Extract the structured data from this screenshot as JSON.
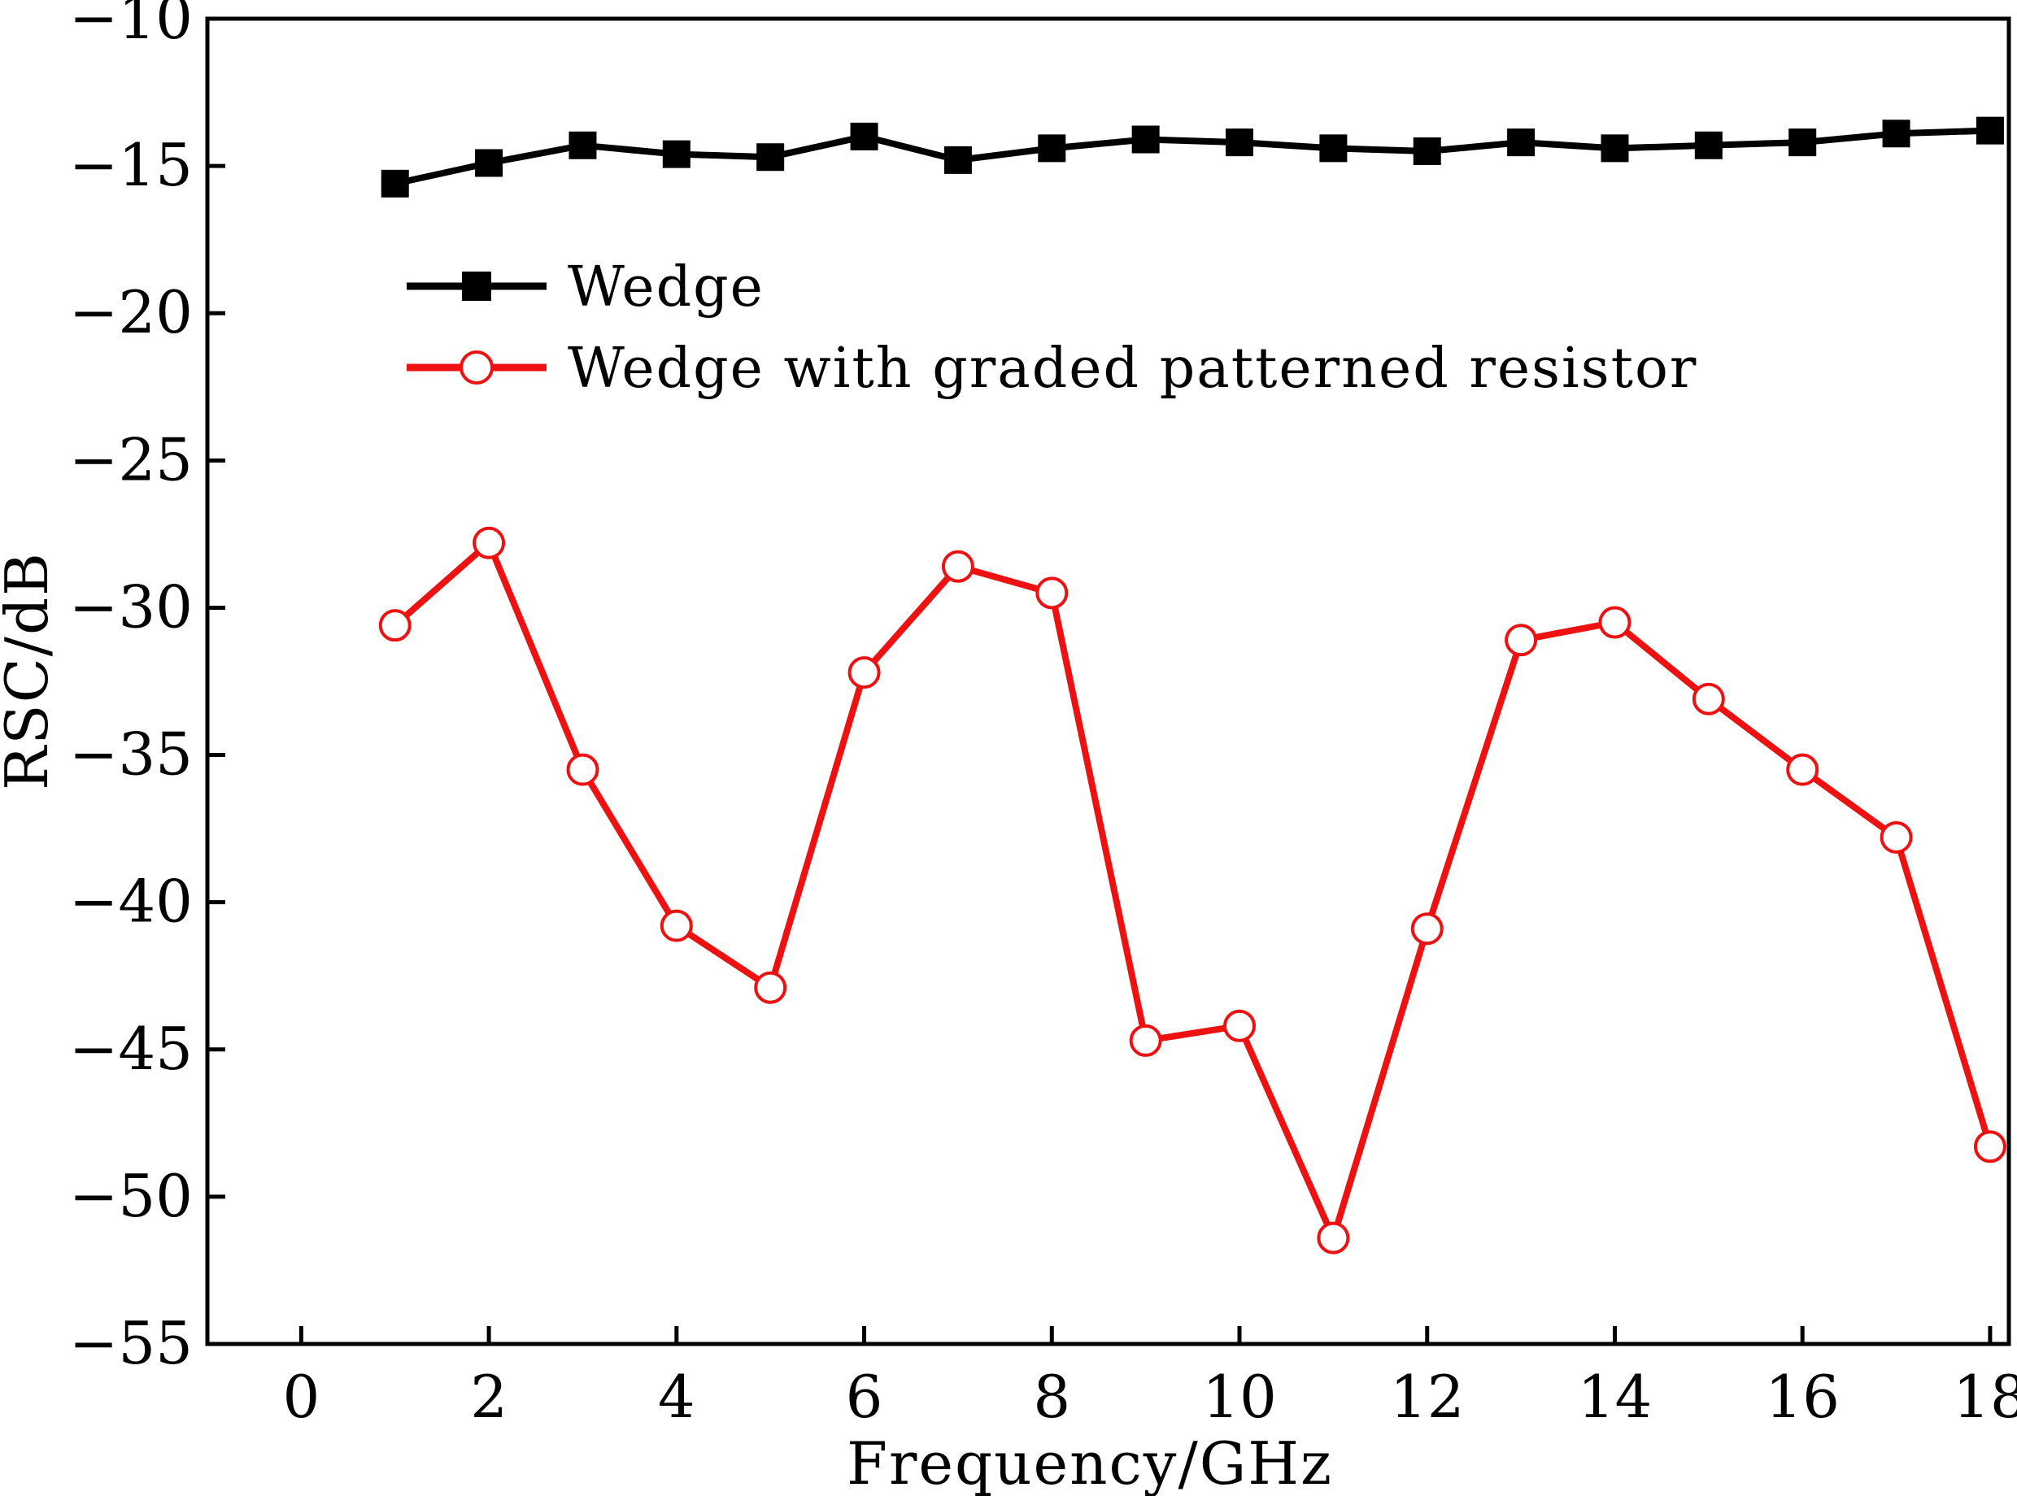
{
  "chart_data": {
    "type": "line",
    "title": "",
    "xlabel": "Frequency/GHz",
    "ylabel": "RSC/dB",
    "xlim": [
      -1,
      18.2
    ],
    "ylim": [
      -55,
      -10
    ],
    "xticks": [
      0,
      2,
      4,
      6,
      8,
      10,
      12,
      14,
      16,
      18
    ],
    "yticks": [
      -10,
      -15,
      -20,
      -25,
      -30,
      -35,
      -40,
      -45,
      -50,
      -55
    ],
    "xtick_labels": [
      "0",
      "2",
      "4",
      "6",
      "8",
      "10",
      "12",
      "14",
      "16",
      "18"
    ],
    "ytick_labels": [
      "−10",
      "−15",
      "−20",
      "−25",
      "−30",
      "−35",
      "−40",
      "−45",
      "−50",
      "−55"
    ],
    "grid": false,
    "legend_position": "upper-left",
    "x": [
      1,
      2,
      3,
      4,
      5,
      6,
      7,
      8,
      9,
      10,
      11,
      12,
      13,
      14,
      15,
      16,
      17,
      18
    ],
    "series": [
      {
        "name": "Wedge",
        "color": "#000000",
        "marker": "filled-square",
        "values": [
          -15.6,
          -14.9,
          -14.3,
          -14.6,
          -14.7,
          -14.0,
          -14.8,
          -14.4,
          -14.1,
          -14.2,
          -14.4,
          -14.5,
          -14.2,
          -14.4,
          -14.3,
          -14.2,
          -13.9,
          -13.8
        ]
      },
      {
        "name": "Wedge with graded patterned resistor",
        "color": "#ee1111",
        "marker": "open-circle",
        "values": [
          -30.6,
          -27.8,
          -35.5,
          -40.8,
          -42.9,
          -32.2,
          -28.6,
          -29.5,
          -44.7,
          -44.2,
          -51.4,
          -40.9,
          -31.1,
          -30.5,
          -33.1,
          -35.5,
          -37.8,
          -48.3
        ]
      }
    ]
  }
}
